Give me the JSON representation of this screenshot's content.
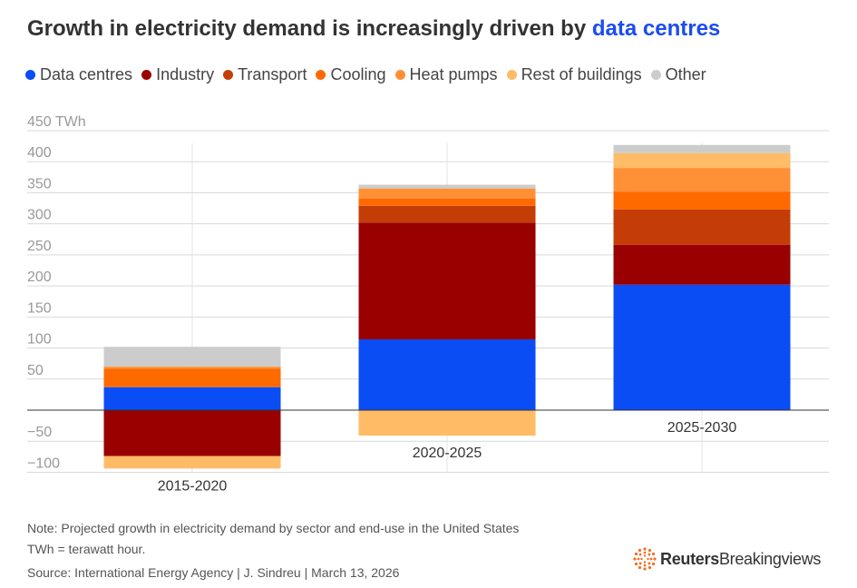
{
  "title": {
    "prefix": "Growth in electricity demand is increasingly driven by",
    "highlight": "data centres"
  },
  "colors": {
    "highlight": "#1a4cf0",
    "data_centres": "#0a4df5",
    "industry": "#990000",
    "transport": "#c43d07",
    "cooling": "#ff6a00",
    "heat_pumps": "#ff9035",
    "rest_of_buildings": "#ffbb66",
    "other": "#cccccc"
  },
  "legend": [
    {
      "label": "Data centres",
      "color": "#0a4df5"
    },
    {
      "label": "Industry",
      "color": "#990000"
    },
    {
      "label": "Transport",
      "color": "#c43d07"
    },
    {
      "label": "Cooling",
      "color": "#ff6a00"
    },
    {
      "label": "Heat pumps",
      "color": "#ff9035"
    },
    {
      "label": "Rest of buildings",
      "color": "#ffbb66"
    },
    {
      "label": "Other",
      "color": "#cccccc"
    }
  ],
  "chart_data": {
    "type": "bar",
    "stacked": true,
    "title": "Growth in electricity demand is increasingly driven by data centres",
    "xlabel": "",
    "ylabel": "TWh",
    "ylim": [
      -100,
      450
    ],
    "yticks": [
      -100,
      -50,
      50,
      100,
      150,
      200,
      250,
      300,
      350,
      400,
      450
    ],
    "ytick_labels": [
      "−100",
      "−50",
      "50",
      "100",
      "150",
      "200",
      "250",
      "300",
      "350",
      "400",
      "450 TWh"
    ],
    "grid": true,
    "categories": [
      "2015-2020",
      "2020-2025",
      "2025-2030"
    ],
    "series": [
      {
        "name": "Data centres",
        "color": "#0a4df5",
        "values": [
          37,
          114,
          202
        ]
      },
      {
        "name": "Industry",
        "color": "#990000",
        "values": [
          -74,
          188,
          64
        ]
      },
      {
        "name": "Transport",
        "color": "#c43d07",
        "values": [
          0,
          27,
          57
        ]
      },
      {
        "name": "Cooling",
        "color": "#ff6a00",
        "values": [
          30,
          12,
          29
        ]
      },
      {
        "name": "Heat pumps",
        "color": "#ff9035",
        "values": [
          3,
          16,
          38
        ]
      },
      {
        "name": "Rest of buildings",
        "color": "#ffbb66",
        "values": [
          -20,
          -41,
          24
        ]
      },
      {
        "name": "Other",
        "color": "#cccccc",
        "values": [
          32,
          6,
          13
        ]
      }
    ]
  },
  "notes": {
    "note_line": "Note: Projected growth in electricity demand by sector and end-use in the United States",
    "unit_line": "TWh = terawatt hour.",
    "source_line": "Source: International Energy Agency | J. Sindreu | March 13, 2026"
  },
  "branding": {
    "word1": "Reuters",
    "word2": "Breakingviews",
    "logo_color": "#f26f21"
  }
}
